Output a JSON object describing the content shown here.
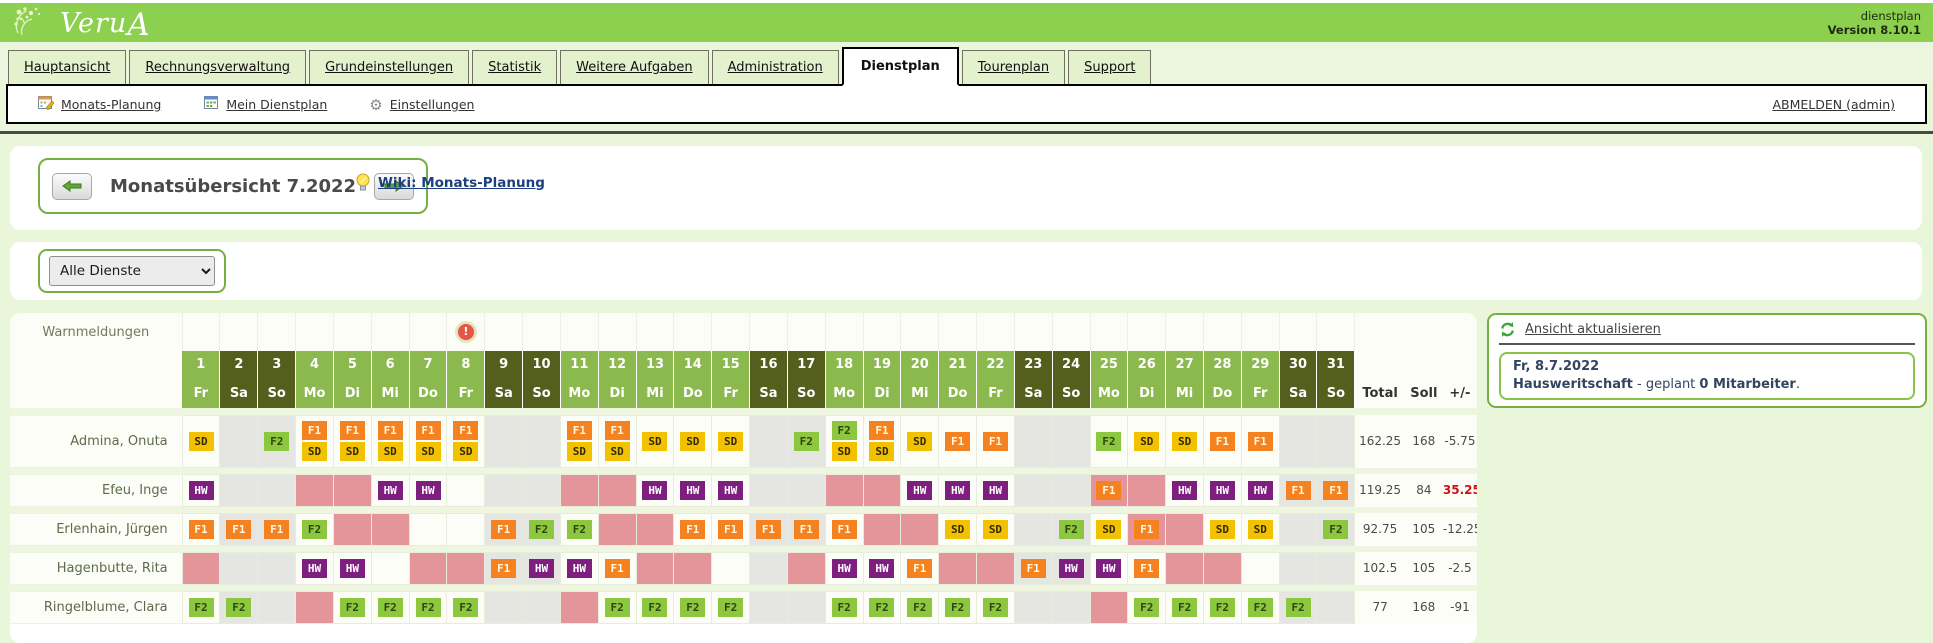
{
  "header": {
    "brand_a": "Veru",
    "brand_b": "A",
    "product": "dienstplan",
    "version": "Version 8.10.1"
  },
  "tabs": [
    {
      "label": "Hauptansicht",
      "active": false
    },
    {
      "label": "Rechnungsverwaltung",
      "active": false
    },
    {
      "label": "Grundeinstellungen",
      "active": false
    },
    {
      "label": "Statistik",
      "active": false
    },
    {
      "label": "Weitere Aufgaben",
      "active": false
    },
    {
      "label": "Administration",
      "active": false
    },
    {
      "label": "Dienstplan",
      "active": true
    },
    {
      "label": "Tourenplan",
      "active": false
    },
    {
      "label": "Support",
      "active": false
    }
  ],
  "toolbar": {
    "items": [
      {
        "label": "Monats-Planung",
        "icon": "calendar-edit-icon"
      },
      {
        "label": "Mein Dienstplan",
        "icon": "calendar-icon"
      },
      {
        "label": "Einstellungen",
        "icon": "gear-icon"
      }
    ],
    "logout": "ABMELDEN (admin)"
  },
  "month_nav": {
    "title": "Monatsübersicht 7.2022",
    "wiki": "Wiki: Monats-Planung",
    "prev_icon": "arrow-left-icon",
    "next_icon": "arrow-right-icon",
    "wiki_icon": "lightbulb-icon"
  },
  "filter": {
    "selected": "Alle Dienste"
  },
  "roster": {
    "warn_label": "Warnmeldungen",
    "warning_day": 8,
    "warning_icon": "warning-exclamation-icon",
    "totals_headers": [
      "Total",
      "Soll",
      "+/-"
    ],
    "days": [
      {
        "num": "1",
        "name": "Fr",
        "weekend": false
      },
      {
        "num": "2",
        "name": "Sa",
        "weekend": true
      },
      {
        "num": "3",
        "name": "So",
        "weekend": true
      },
      {
        "num": "4",
        "name": "Mo",
        "weekend": false
      },
      {
        "num": "5",
        "name": "Di",
        "weekend": false
      },
      {
        "num": "6",
        "name": "Mi",
        "weekend": false
      },
      {
        "num": "7",
        "name": "Do",
        "weekend": false
      },
      {
        "num": "8",
        "name": "Fr",
        "weekend": false
      },
      {
        "num": "9",
        "name": "Sa",
        "weekend": true
      },
      {
        "num": "10",
        "name": "So",
        "weekend": true
      },
      {
        "num": "11",
        "name": "Mo",
        "weekend": false
      },
      {
        "num": "12",
        "name": "Di",
        "weekend": false
      },
      {
        "num": "13",
        "name": "Mi",
        "weekend": false
      },
      {
        "num": "14",
        "name": "Do",
        "weekend": false
      },
      {
        "num": "15",
        "name": "Fr",
        "weekend": false
      },
      {
        "num": "16",
        "name": "Sa",
        "weekend": true
      },
      {
        "num": "17",
        "name": "So",
        "weekend": true
      },
      {
        "num": "18",
        "name": "Mo",
        "weekend": false
      },
      {
        "num": "19",
        "name": "Di",
        "weekend": false
      },
      {
        "num": "20",
        "name": "Mi",
        "weekend": false
      },
      {
        "num": "21",
        "name": "Do",
        "weekend": false
      },
      {
        "num": "22",
        "name": "Fr",
        "weekend": false
      },
      {
        "num": "23",
        "name": "Sa",
        "weekend": true
      },
      {
        "num": "24",
        "name": "So",
        "weekend": true
      },
      {
        "num": "25",
        "name": "Mo",
        "weekend": false
      },
      {
        "num": "26",
        "name": "Di",
        "weekend": false
      },
      {
        "num": "27",
        "name": "Mi",
        "weekend": false
      },
      {
        "num": "28",
        "name": "Do",
        "weekend": false
      },
      {
        "num": "29",
        "name": "Fr",
        "weekend": false
      },
      {
        "num": "30",
        "name": "Sa",
        "weekend": true
      },
      {
        "num": "31",
        "name": "So",
        "weekend": true
      }
    ],
    "badge_styles": {
      "SD": {
        "bg": "#f2c200",
        "fg": "#33290a"
      },
      "F1": {
        "bg": "#f58220",
        "fg": "#fff8e1"
      },
      "F2": {
        "bg": "#8dc63f",
        "fg": "#2f470e"
      },
      "HW": {
        "bg": "#7e1e7e",
        "fg": "#ffffff"
      }
    },
    "employees": [
      {
        "name": "Admina, Onuta",
        "total": "162.25",
        "soll": "168",
        "diff": "-5.75",
        "diff_red": false,
        "cells": {
          "1": "SD",
          "3": "F2",
          "4": "F1+SD",
          "5": "F1+SD",
          "6": "F1+SD",
          "7": "F1+SD",
          "8": "F1+SD",
          "11": "F1+SD",
          "12": "F1+SD",
          "13": "SD",
          "14": "SD",
          "15": "SD",
          "17": "F2",
          "18": "F2+SD",
          "19": "F1+SD",
          "20": "SD",
          "21": "F1",
          "22": "F1",
          "25": "F2",
          "26": "SD",
          "27": "SD",
          "28": "F1",
          "29": "F1"
        }
      },
      {
        "name": "Efeu, Inge",
        "total": "119.25",
        "soll": "84",
        "diff": "35.25",
        "diff_red": true,
        "cells": {
          "1": "HW",
          "4": "P",
          "5": "P",
          "6": "HW",
          "7": "HW",
          "11": "P",
          "12": "P",
          "13": "HW",
          "14": "HW",
          "15": "HW",
          "18": "P",
          "19": "P",
          "20": "HW",
          "21": "HW",
          "22": "HW",
          "25": "P+F1",
          "26": "P",
          "27": "HW",
          "28": "HW",
          "29": "HW",
          "30": "F1",
          "31": "F1"
        }
      },
      {
        "name": "Erlenhain, Jürgen",
        "total": "92.75",
        "soll": "105",
        "diff": "-12.25",
        "diff_red": false,
        "cells": {
          "1": "F1",
          "2": "F1",
          "3": "F1",
          "4": "F2",
          "5": "P",
          "6": "P",
          "9": "F1",
          "10": "F2",
          "11": "F2",
          "12": "P",
          "13": "P",
          "14": "F1",
          "15": "F1",
          "16": "F1",
          "17": "F1",
          "18": "F1",
          "19": "P",
          "20": "P",
          "21": "SD",
          "22": "SD",
          "24": "F2",
          "25": "SD",
          "26": "P+F1",
          "27": "P",
          "28": "SD",
          "29": "SD",
          "31": "F2"
        }
      },
      {
        "name": "Hagenbutte, Rita",
        "total": "102.5",
        "soll": "105",
        "diff": "-2.5",
        "diff_red": false,
        "cells": {
          "1": "P",
          "4": "HW",
          "5": "HW",
          "7": "P",
          "8": "P",
          "9": "F1",
          "10": "HW",
          "11": "HW",
          "12": "F1",
          "13": "P",
          "14": "P",
          "17": "P",
          "18": "HW",
          "19": "HW",
          "20": "F1",
          "21": "P",
          "22": "P",
          "23": "F1",
          "24": "HW",
          "25": "HW",
          "26": "F1",
          "27": "P",
          "28": "P"
        }
      },
      {
        "name": "Ringelblume, Clara",
        "total": "77",
        "soll": "168",
        "diff": "-91",
        "diff_red": false,
        "cells": {
          "1": "F2",
          "2": "F2",
          "4": "P",
          "5": "F2",
          "6": "F2",
          "7": "F2",
          "8": "F2",
          "11": "P",
          "12": "F2",
          "13": "F2",
          "14": "F2",
          "15": "F2",
          "18": "F2",
          "19": "F2",
          "20": "F2",
          "21": "F2",
          "22": "F2",
          "25": "P",
          "26": "F2",
          "27": "F2",
          "28": "F2",
          "29": "F2",
          "30": "F2"
        }
      }
    ]
  },
  "side_panel": {
    "refresh": "Ansicht aktualisieren",
    "refresh_icon": "refresh-arrows-icon",
    "date": "Fr, 8.7.2022",
    "dept": "Hausweritschaft",
    "middle": " - geplant ",
    "count": "0 Mitarbeiter",
    "end": "."
  },
  "colors": {
    "header_green": "#8dd04f",
    "day_green": "#8bb94d",
    "weekend_olive": "#545f1e",
    "weekend_gray": "#e5e5e2",
    "vacation_pink": "#e39599",
    "cell_white": "#fcfdf6",
    "accent_border": "#76b043",
    "positive_red": "#cc1111"
  }
}
